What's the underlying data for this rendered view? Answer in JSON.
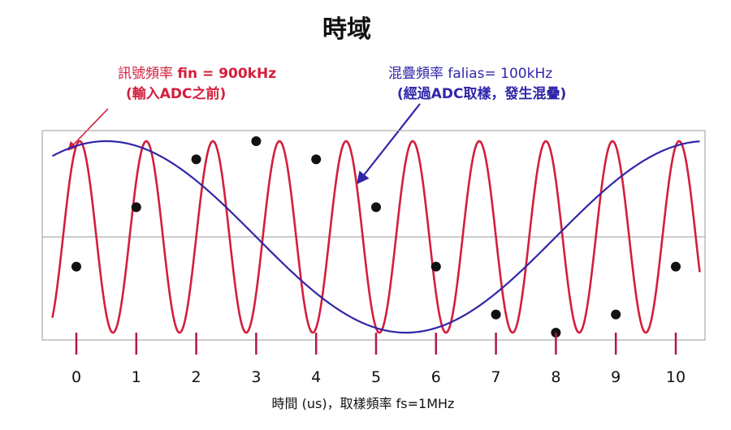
{
  "chart_data": {
    "type": "line",
    "title": "時域",
    "xlabel": "時間 (us)，取樣頻率 fs=1MHz",
    "ylabel": "",
    "x_ticks": [
      "0",
      "1",
      "2",
      "3",
      "4",
      "5",
      "6",
      "7",
      "8",
      "9",
      "10"
    ],
    "xlim": [
      -0.4,
      10.4
    ],
    "ylim": [
      -1.1,
      1.1
    ],
    "grid": false,
    "series": [
      {
        "name": "訊號頻率 fin = 900kHz",
        "color": "#d41e3c",
        "frequency_mhz": 0.9,
        "amplitude": 1.0
      },
      {
        "name": "混疊頻率 falias= 100kHz",
        "color": "#3026a8",
        "frequency_mhz": 0.1,
        "amplitude": 1.0
      }
    ],
    "samples": {
      "color": "#111111",
      "x": [
        0,
        1,
        2,
        3,
        4,
        5,
        6,
        7,
        8,
        9,
        10
      ],
      "y": [
        -0.31,
        0.31,
        0.81,
        1.0,
        0.81,
        0.31,
        -0.31,
        -0.81,
        -1.0,
        -0.81,
        -0.31
      ]
    },
    "annotations": [
      {
        "key": "fin",
        "lines": [
          [
            {
              "text": "訊號頻率 ",
              "bold": false
            },
            {
              "text": "fin = 900kHz",
              "bold": true
            }
          ],
          [
            {
              "text": "(輸入ADC之前)",
              "bold": true
            }
          ]
        ],
        "color": "#d41e3c"
      },
      {
        "key": "falias",
        "lines": [
          [
            {
              "text": "混疊頻率 ",
              "bold": false
            },
            {
              "text": "falias= 100kHz",
              "bold": false
            }
          ],
          [
            {
              "text": "(經過ADC取樣，發生混疊)",
              "bold": true
            }
          ]
        ],
        "color": "#3026a8"
      }
    ]
  }
}
